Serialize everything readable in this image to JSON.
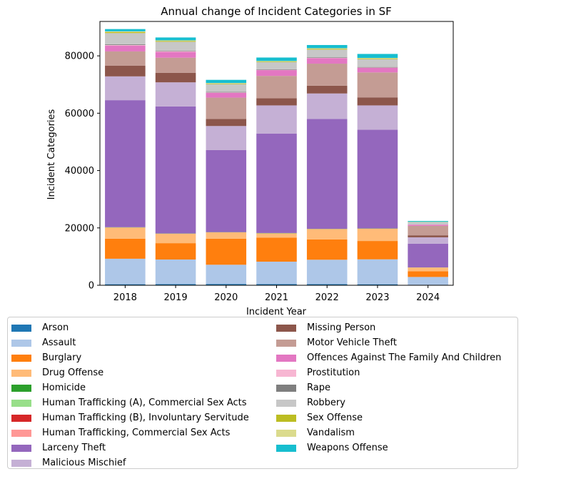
{
  "chart_data": {
    "type": "bar",
    "stacked": true,
    "title": "Annual change of Incident Categories in SF",
    "xlabel": "Incident Year",
    "ylabel": "Incident Categories",
    "categories": [
      "2018",
      "2019",
      "2020",
      "2021",
      "2022",
      "2023",
      "2024"
    ],
    "ylim": [
      0,
      92000
    ],
    "yticks": [
      0,
      20000,
      40000,
      60000,
      80000
    ],
    "legend_position": "below",
    "series": [
      {
        "name": "Arson",
        "color": "#1f77b4",
        "values": [
          350,
          380,
          450,
          430,
          400,
          340,
          90
        ]
      },
      {
        "name": "Assault",
        "color": "#aec7e8",
        "values": [
          8900,
          8600,
          6700,
          7800,
          8500,
          8700,
          2800
        ]
      },
      {
        "name": "Burglary",
        "color": "#ff7f0e",
        "values": [
          7000,
          5700,
          9100,
          8400,
          7100,
          6400,
          2000
        ]
      },
      {
        "name": "Drug Offense",
        "color": "#ffbb78",
        "values": [
          3900,
          3300,
          2200,
          1500,
          3600,
          4300,
          1300
        ]
      },
      {
        "name": "Homicide",
        "color": "#2ca02c",
        "values": [
          60,
          50,
          60,
          70,
          60,
          60,
          20
        ]
      },
      {
        "name": "Human Trafficking (A), Commercial Sex Acts",
        "color": "#98df8a",
        "values": [
          20,
          20,
          10,
          10,
          10,
          10,
          5
        ]
      },
      {
        "name": "Human Trafficking (B), Involuntary Servitude",
        "color": "#d62728",
        "values": [
          5,
          5,
          5,
          5,
          5,
          5,
          2
        ]
      },
      {
        "name": "Human Trafficking, Commercial Sex Acts",
        "color": "#ff9896",
        "values": [
          10,
          10,
          5,
          5,
          5,
          5,
          2
        ]
      },
      {
        "name": "Larceny Theft",
        "color": "#9467bd",
        "values": [
          44300,
          44300,
          28600,
          34700,
          38300,
          34400,
          8300
        ]
      },
      {
        "name": "Malicious Mischief",
        "color": "#c5b0d5",
        "values": [
          8300,
          8400,
          8400,
          9800,
          8900,
          8500,
          2200
        ]
      },
      {
        "name": "Missing Person",
        "color": "#8c564b",
        "values": [
          3700,
          3300,
          2500,
          2500,
          2700,
          2800,
          700
        ]
      },
      {
        "name": "Motor Vehicle Theft",
        "color": "#c49c94",
        "values": [
          5000,
          5300,
          7400,
          7800,
          7700,
          8700,
          3300
        ]
      },
      {
        "name": "Offences Against The Family And Children",
        "color": "#e377c2",
        "values": [
          2000,
          2000,
          1700,
          2000,
          1900,
          1600,
          400
        ]
      },
      {
        "name": "Prostitution",
        "color": "#f7b6d2",
        "values": [
          250,
          250,
          100,
          100,
          100,
          100,
          50
        ]
      },
      {
        "name": "Rape",
        "color": "#7f7f7f",
        "values": [
          250,
          200,
          200,
          200,
          200,
          200,
          50
        ]
      },
      {
        "name": "Robbery",
        "color": "#c7c7c7",
        "values": [
          3900,
          3100,
          2700,
          2500,
          2700,
          2700,
          750
        ]
      },
      {
        "name": "Sex Offense",
        "color": "#bcbd22",
        "values": [
          350,
          250,
          200,
          200,
          250,
          200,
          60
        ]
      },
      {
        "name": "Vandalism",
        "color": "#dbdb8d",
        "values": [
          250,
          250,
          200,
          200,
          250,
          250,
          80
        ]
      },
      {
        "name": "Weapons Offense",
        "color": "#17becf",
        "values": [
          800,
          1000,
          1100,
          1200,
          1100,
          1400,
          300
        ]
      }
    ]
  }
}
